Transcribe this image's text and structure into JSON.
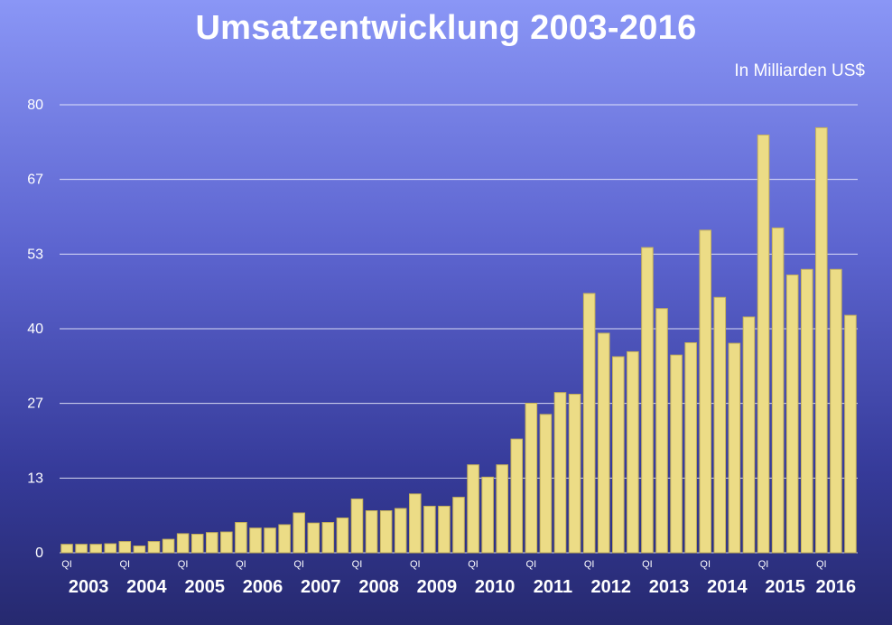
{
  "chart_data": {
    "type": "bar",
    "title": "Umsatzentwicklung 2003-2016",
    "unit_label": "In Milliarden US$",
    "ylim": [
      0,
      80
    ],
    "y_ticks": [
      "0",
      "13",
      "27",
      "40",
      "53",
      "67",
      "80"
    ],
    "y_tick_values": [
      0,
      13.33,
      26.67,
      40,
      53.33,
      66.67,
      80
    ],
    "grid": true,
    "bar_color": "#ecdc86",
    "quarter_marker": "QI",
    "years": [
      "2003",
      "2004",
      "2005",
      "2006",
      "2007",
      "2008",
      "2009",
      "2010",
      "2011",
      "2012",
      "2013",
      "2014",
      "2015",
      "2016"
    ],
    "values": [
      1.5,
      1.5,
      1.5,
      1.6,
      2.0,
      1.2,
      2.0,
      2.4,
      3.4,
      3.3,
      3.6,
      3.7,
      5.4,
      4.4,
      4.4,
      5.0,
      7.1,
      5.3,
      5.4,
      6.2,
      9.6,
      7.5,
      7.5,
      7.9,
      10.5,
      8.3,
      8.3,
      9.9,
      15.7,
      13.5,
      15.7,
      20.3,
      26.7,
      24.7,
      28.6,
      28.3,
      46.3,
      39.2,
      35.0,
      35.9,
      54.5,
      43.6,
      35.3,
      37.5,
      57.6,
      45.6,
      37.4,
      42.1,
      74.6,
      58.0,
      49.6,
      50.6,
      75.9,
      50.6,
      42.4
    ]
  }
}
